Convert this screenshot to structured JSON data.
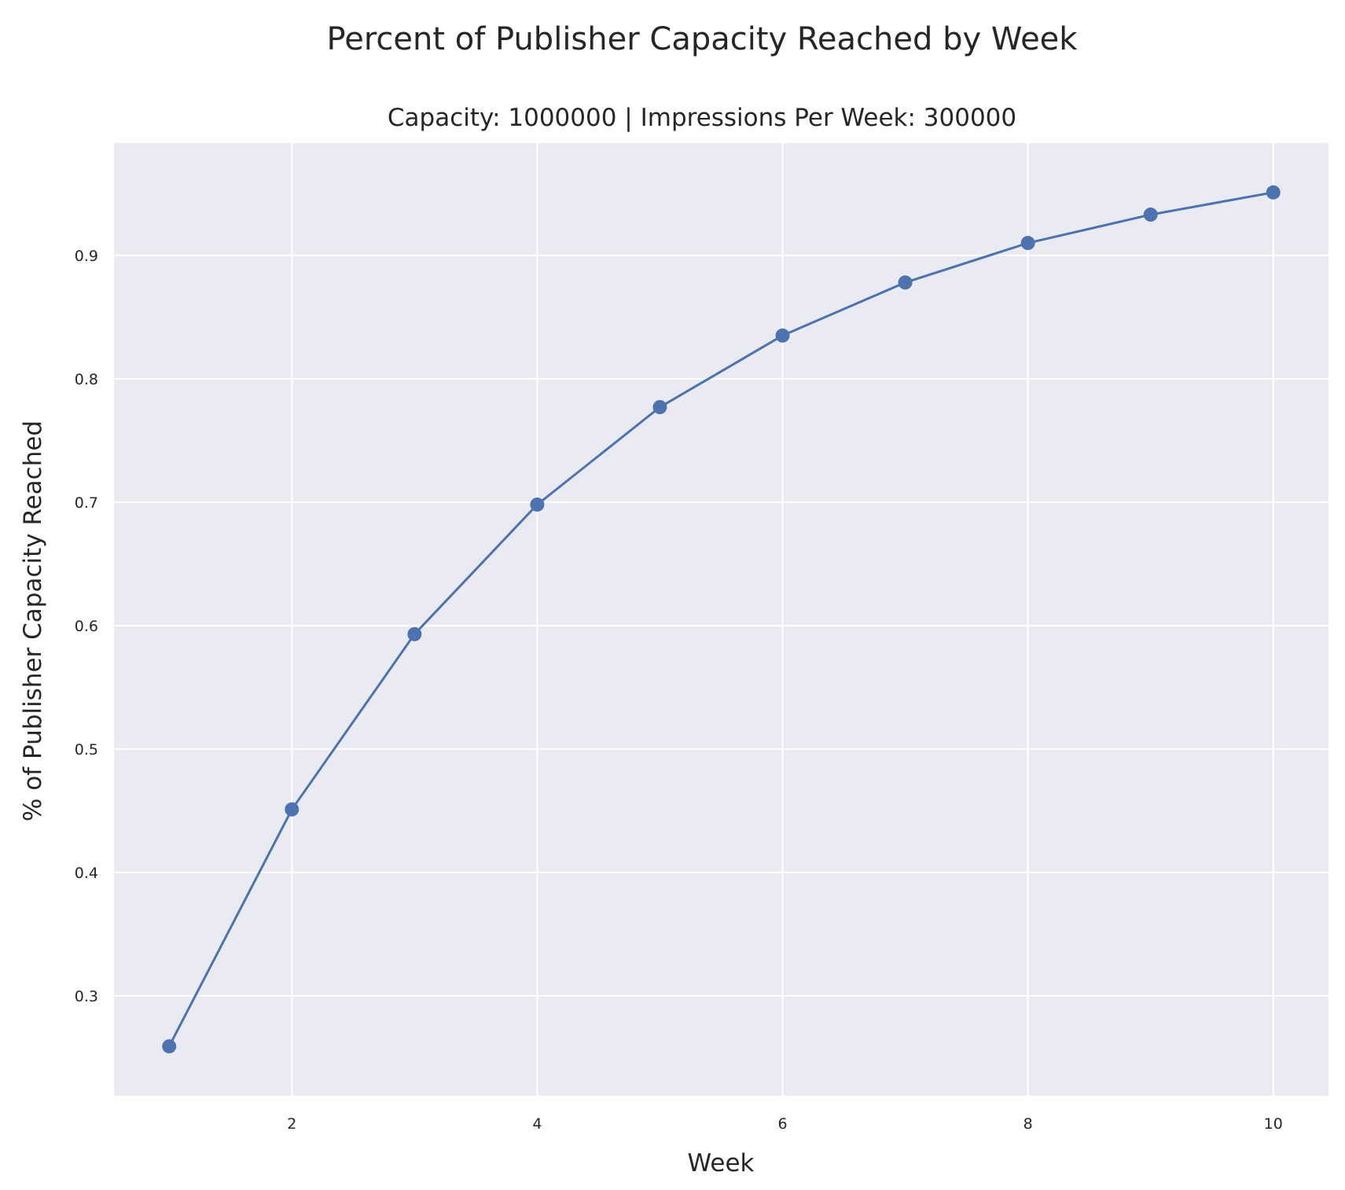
{
  "chart_data": {
    "type": "line",
    "title": "Percent of Publisher Capacity Reached by Week",
    "subtitle": "Capacity: 1000000 | Impressions Per Week: 300000",
    "xlabel": "Week",
    "ylabel": "% of Publisher Capacity Reached",
    "x": [
      1,
      2,
      3,
      4,
      5,
      6,
      7,
      8,
      9,
      10
    ],
    "series": [
      {
        "values": [
          0.259,
          0.451,
          0.593,
          0.698,
          0.777,
          0.835,
          0.878,
          0.91,
          0.933,
          0.951
        ]
      }
    ],
    "xlim": [
      0.55,
      10.45
    ],
    "ylim": [
      0.219,
      0.991
    ],
    "xticks": [
      2,
      4,
      6,
      8,
      10
    ],
    "yticks": [
      0.3,
      0.4,
      0.5,
      0.6,
      0.7,
      0.8,
      0.9
    ],
    "ytick_labels": [
      "0.3",
      "0.4",
      "0.5",
      "0.6",
      "0.7",
      "0.8",
      "0.9"
    ],
    "xtick_labels": [
      "2",
      "4",
      "6",
      "8",
      "10"
    ],
    "grid": true,
    "legend": "none",
    "colors": {
      "line": "#4c72b0",
      "plot_background": "#eaeaf2",
      "grid": "#ffffff"
    }
  }
}
